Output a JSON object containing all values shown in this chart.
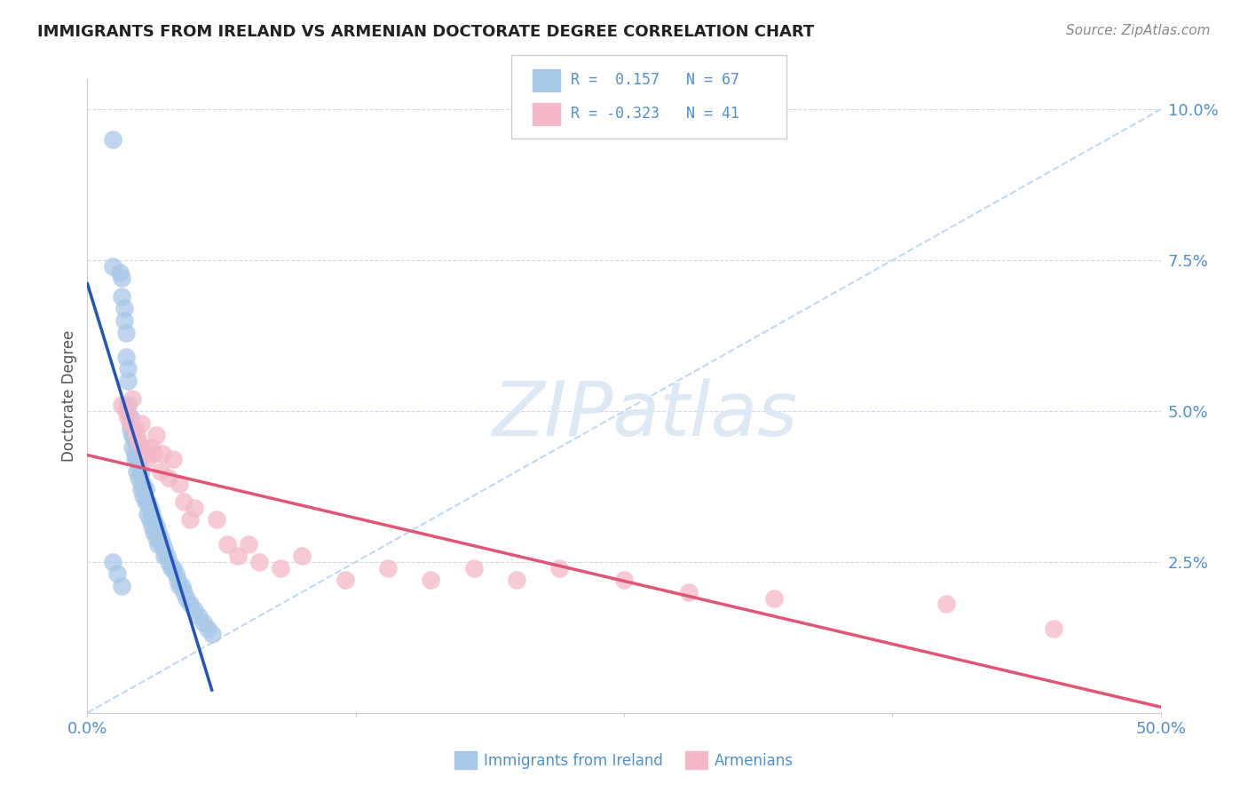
{
  "title": "IMMIGRANTS FROM IRELAND VS ARMENIAN DOCTORATE DEGREE CORRELATION CHART",
  "source": "Source: ZipAtlas.com",
  "ylabel": "Doctorate Degree",
  "xlim": [
    0.0,
    0.5
  ],
  "ylim": [
    0.0,
    0.105
  ],
  "legend_R1": "0.157",
  "legend_N1": "67",
  "legend_R2": "-0.323",
  "legend_N2": "41",
  "blue_scatter_color": "#a8c8e8",
  "pink_scatter_color": "#f4b8c8",
  "blue_line_color": "#2255bb",
  "pink_line_color": "#e05575",
  "diag_line_color": "#b8d4f0",
  "grid_color": "#d0d8e8",
  "title_color": "#222222",
  "source_color": "#888888",
  "axis_label_color": "#5090d0",
  "ylabel_color": "#555555",
  "watermark_color": "#dce8f4",
  "ireland_x": [
    0.012,
    0.012,
    0.015,
    0.016,
    0.016,
    0.017,
    0.017,
    0.018,
    0.018,
    0.019,
    0.019,
    0.019,
    0.02,
    0.02,
    0.02,
    0.021,
    0.021,
    0.021,
    0.022,
    0.022,
    0.022,
    0.023,
    0.023,
    0.024,
    0.024,
    0.025,
    0.025,
    0.025,
    0.026,
    0.026,
    0.027,
    0.027,
    0.028,
    0.028,
    0.029,
    0.029,
    0.03,
    0.03,
    0.031,
    0.031,
    0.032,
    0.032,
    0.033,
    0.033,
    0.034,
    0.035,
    0.036,
    0.036,
    0.037,
    0.038,
    0.039,
    0.04,
    0.041,
    0.042,
    0.043,
    0.044,
    0.045,
    0.046,
    0.048,
    0.05,
    0.052,
    0.054,
    0.056,
    0.058,
    0.012,
    0.014,
    0.016
  ],
  "ireland_y": [
    0.095,
    0.074,
    0.073,
    0.072,
    0.069,
    0.067,
    0.065,
    0.063,
    0.059,
    0.057,
    0.055,
    0.051,
    0.049,
    0.048,
    0.047,
    0.046,
    0.046,
    0.044,
    0.045,
    0.043,
    0.042,
    0.042,
    0.04,
    0.041,
    0.039,
    0.04,
    0.038,
    0.037,
    0.038,
    0.036,
    0.037,
    0.035,
    0.035,
    0.033,
    0.034,
    0.032,
    0.033,
    0.031,
    0.032,
    0.03,
    0.031,
    0.029,
    0.03,
    0.028,
    0.029,
    0.028,
    0.027,
    0.026,
    0.026,
    0.025,
    0.024,
    0.024,
    0.023,
    0.022,
    0.021,
    0.021,
    0.02,
    0.019,
    0.018,
    0.017,
    0.016,
    0.015,
    0.014,
    0.013,
    0.025,
    0.023,
    0.021
  ],
  "armenian_x": [
    0.016,
    0.018,
    0.019,
    0.02,
    0.021,
    0.022,
    0.023,
    0.024,
    0.025,
    0.026,
    0.027,
    0.028,
    0.03,
    0.031,
    0.032,
    0.034,
    0.035,
    0.038,
    0.04,
    0.043,
    0.045,
    0.048,
    0.05,
    0.06,
    0.065,
    0.07,
    0.075,
    0.08,
    0.09,
    0.1,
    0.12,
    0.14,
    0.16,
    0.18,
    0.2,
    0.22,
    0.25,
    0.28,
    0.32,
    0.4,
    0.45
  ],
  "armenian_y": [
    0.051,
    0.05,
    0.049,
    0.048,
    0.052,
    0.047,
    0.046,
    0.045,
    0.048,
    0.044,
    0.043,
    0.042,
    0.044,
    0.043,
    0.046,
    0.04,
    0.043,
    0.039,
    0.042,
    0.038,
    0.035,
    0.032,
    0.034,
    0.032,
    0.028,
    0.026,
    0.028,
    0.025,
    0.024,
    0.026,
    0.022,
    0.024,
    0.022,
    0.024,
    0.022,
    0.024,
    0.022,
    0.02,
    0.019,
    0.018,
    0.014
  ]
}
